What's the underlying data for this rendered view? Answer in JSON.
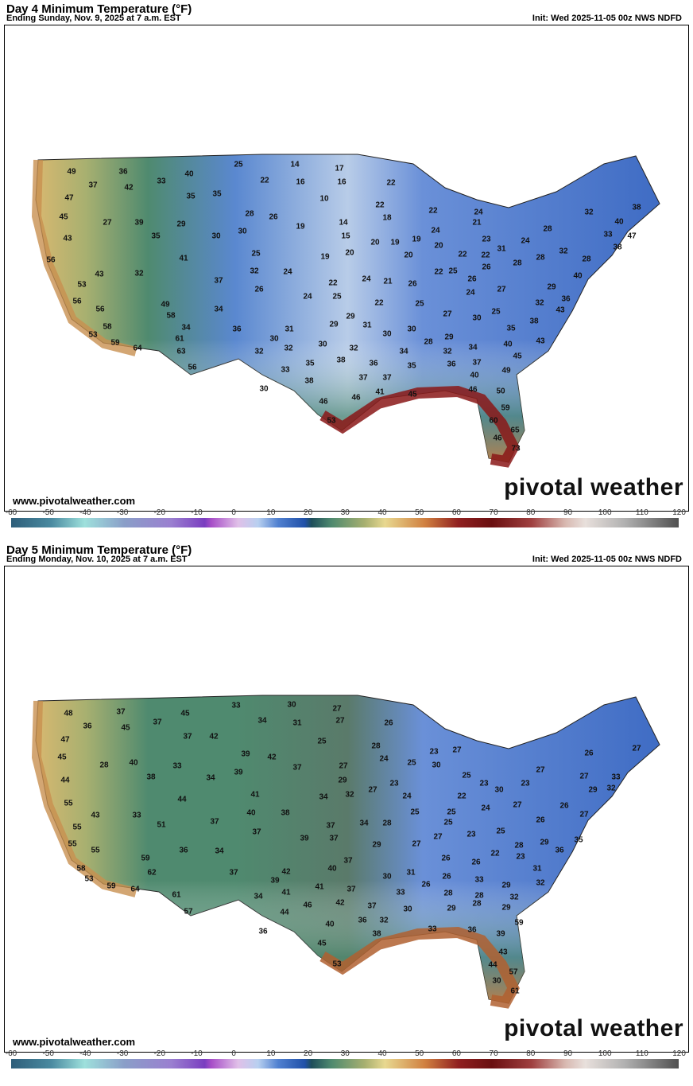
{
  "panels": [
    {
      "title": "Day 4 Minimum Temperature (°F)",
      "subtitle": "Ending Sunday, Nov. 9, 2025 at 7 a.m. EST",
      "init": "Init: Wed 2025-11-05 00z NWS NDFD",
      "values": [
        49,
        36,
        33,
        40,
        25,
        14,
        17,
        37,
        42,
        35,
        35,
        22,
        16,
        16,
        22,
        47,
        10,
        22,
        28,
        26,
        14,
        18,
        22,
        24,
        32,
        38,
        45,
        27,
        39,
        29,
        19,
        24,
        21,
        40,
        30,
        30,
        15,
        28,
        33,
        47,
        43,
        35,
        20,
        19,
        19,
        20,
        23,
        24,
        38,
        25,
        19,
        20,
        20,
        22,
        31,
        32,
        56,
        41,
        22,
        28,
        28,
        28,
        43,
        32,
        32,
        24,
        22,
        25,
        26,
        40,
        37,
        22,
        24,
        21,
        26,
        26,
        27,
        29,
        53,
        26,
        24,
        25,
        25,
        24,
        56,
        49,
        22,
        32,
        36,
        43,
        56,
        58,
        34,
        27,
        30,
        25,
        38,
        58,
        34,
        36,
        31,
        29,
        29,
        31,
        30,
        29,
        35,
        53,
        59,
        64,
        61,
        30,
        30,
        32,
        30,
        28,
        40,
        43,
        63,
        32,
        32,
        34,
        32,
        34,
        45,
        56,
        38,
        36,
        36,
        37,
        33,
        35,
        38,
        37,
        37,
        35,
        40,
        49,
        30,
        41,
        46,
        45,
        46,
        46,
        50,
        59,
        53,
        60,
        65,
        46,
        73
      ]
    },
    {
      "title": "Day 5 Minimum Temperature (°F)",
      "subtitle": "Ending Monday, Nov. 10, 2025 at 7 a.m. EST",
      "init": "Init: Wed 2025-11-05 00z NWS NDFD",
      "values": [
        48,
        37,
        45,
        33,
        30,
        27,
        36,
        45,
        37,
        42,
        34,
        31,
        27,
        26,
        47,
        37,
        25,
        28,
        23,
        45,
        28,
        40,
        33,
        39,
        42,
        24,
        27,
        26,
        27,
        44,
        38,
        34,
        39,
        37,
        27,
        25,
        30,
        27,
        23,
        23,
        27,
        33,
        29,
        27,
        23,
        25,
        30,
        29,
        32,
        41,
        24,
        22,
        24,
        27,
        26,
        26,
        27,
        55,
        43,
        33,
        44,
        37,
        40,
        38,
        34,
        32,
        25,
        25,
        35,
        55,
        55,
        37,
        28,
        25,
        37,
        23,
        25,
        27,
        39,
        37,
        34,
        51,
        36,
        34,
        29,
        27,
        26,
        26,
        22,
        28,
        29,
        36,
        55,
        59,
        37,
        40,
        37,
        23,
        31,
        58,
        62,
        42,
        41,
        37,
        30,
        31,
        26,
        26,
        28,
        33,
        29,
        32,
        53,
        59,
        64,
        39,
        41,
        34,
        28,
        32,
        61,
        46,
        42,
        33,
        57,
        37,
        30,
        29,
        29,
        44,
        40,
        36,
        32,
        28,
        36,
        45,
        38,
        33,
        36,
        39,
        59,
        53,
        43,
        44,
        57,
        30,
        61
      ]
    }
  ],
  "footer": {
    "site": "www.pivotalweather.com",
    "brand": "pivotal weather"
  },
  "colorbar": {
    "ticks": [
      "-60",
      "-50",
      "-40",
      "-30",
      "-20",
      "-10",
      "0",
      "10",
      "20",
      "30",
      "40",
      "50",
      "60",
      "70",
      "80",
      "90",
      "100",
      "110",
      "120"
    ],
    "units": "°F"
  },
  "colors": {
    "cold": "#2050a8",
    "cool": "#4f8a6f",
    "warm": "#d08040",
    "hot": "#6a0f10"
  }
}
